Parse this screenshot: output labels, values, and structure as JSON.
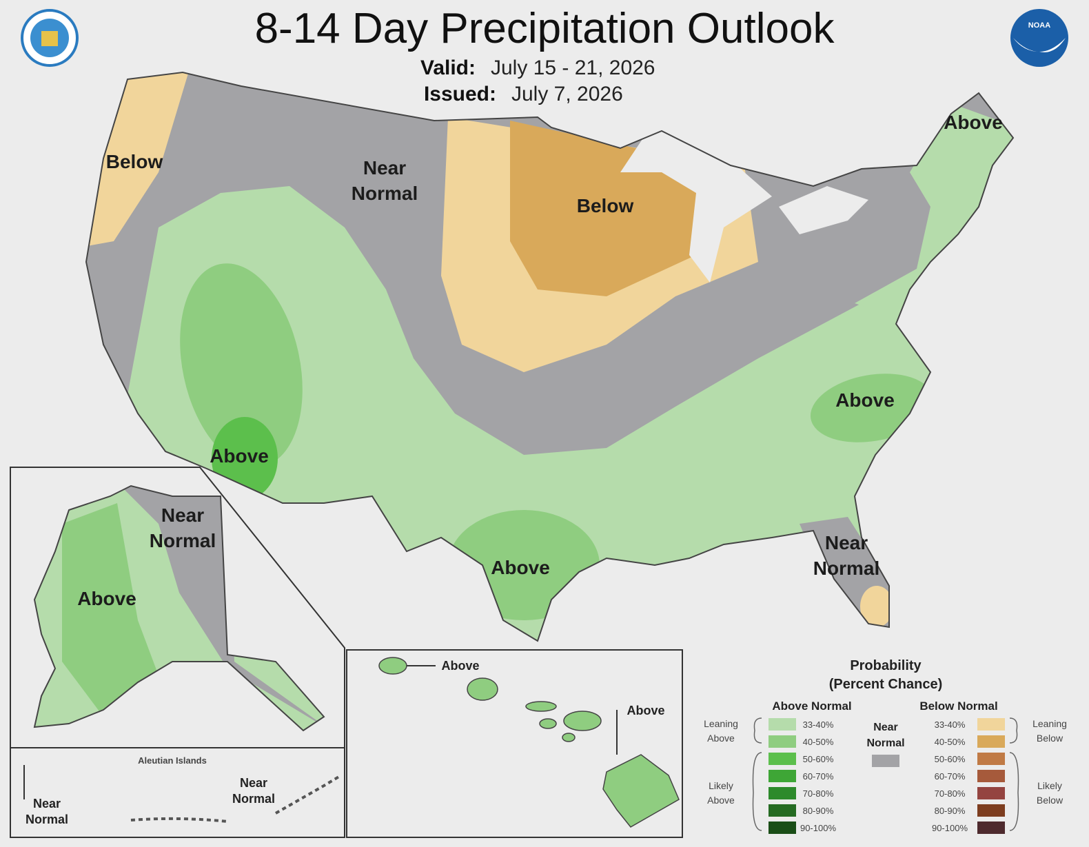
{
  "header": {
    "title": "8-14 Day Precipitation Outlook",
    "valid_label": "Valid:",
    "valid": "July 15 - 21, 2026",
    "issued_label": "Issued:",
    "issued": "July 7, 2026",
    "noaa_logo": "NOAA"
  },
  "map_labels": [
    {
      "lines": [
        "Below"
      ]
    },
    {
      "lines": [
        "Near",
        "Normal"
      ]
    },
    {
      "lines": [
        "Below"
      ]
    },
    {
      "lines": [
        "Above"
      ]
    },
    {
      "lines": [
        "Above"
      ]
    },
    {
      "lines": [
        "Above"
      ]
    },
    {
      "lines": [
        "Above"
      ]
    },
    {
      "lines": [
        "Near",
        "Normal"
      ]
    },
    {
      "lines": [
        "Near",
        "Normal"
      ]
    },
    {
      "lines": [
        "Above"
      ]
    },
    {
      "lines": [
        "Above"
      ]
    },
    {
      "lines": [
        "Above"
      ]
    },
    {
      "lines": [
        "Near",
        "Normal"
      ]
    },
    {
      "lines": [
        "Near",
        "Normal"
      ]
    }
  ],
  "inset_title": "Aleutian Islands",
  "legend": {
    "title": "Probability",
    "subtitle": "(Percent Chance)",
    "above_heading": "Above Normal",
    "below_heading": "Below Normal",
    "near": {
      "lines": [
        "Near",
        "Normal"
      ],
      "color": "#a3a3a6"
    },
    "leaning_above": [
      "Leaning",
      "Above"
    ],
    "likely_above": [
      "Likely",
      "Above"
    ],
    "leaning_below": [
      "Leaning",
      "Below"
    ],
    "likely_below": [
      "Likely",
      "Below"
    ],
    "above": [
      {
        "label": "33-40%",
        "color": "#b5dcab"
      },
      {
        "label": "40-50%",
        "color": "#8fcd80"
      },
      {
        "label": "50-60%",
        "color": "#5cbf4c"
      },
      {
        "label": "60-70%",
        "color": "#3ea636"
      },
      {
        "label": "70-80%",
        "color": "#2d8a2b"
      },
      {
        "label": "80-90%",
        "color": "#256b22"
      },
      {
        "label": "90-100%",
        "color": "#1a4e17"
      }
    ],
    "below": [
      {
        "label": "33-40%",
        "color": "#f1d59b"
      },
      {
        "label": "40-50%",
        "color": "#d9a95a"
      },
      {
        "label": "50-60%",
        "color": "#c07a45"
      },
      {
        "label": "60-70%",
        "color": "#a65a3b"
      },
      {
        "label": "70-80%",
        "color": "#944440"
      },
      {
        "label": "80-90%",
        "color": "#7d3d1f"
      },
      {
        "label": "90-100%",
        "color": "#4e2a2e"
      }
    ]
  }
}
